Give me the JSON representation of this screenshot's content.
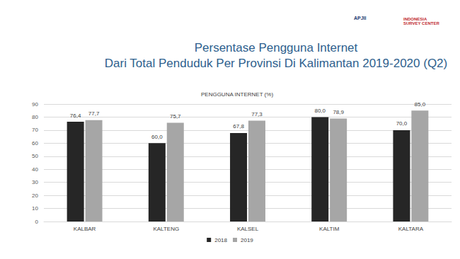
{
  "chart_data": {
    "type": "bar",
    "title": "Persentase Pengguna Internet",
    "subtitle": "Dari Total Penduduk Per Provinsi Di Kalimantan 2019-2020 (Q2)",
    "ylabel": "PENGGUNA INTERNET (%)",
    "annotations": [
      "APJII",
      "INDONESIA SURVEY CENTER"
    ],
    "categories": [
      "KALBAR",
      "KALTENG",
      "KALSEL",
      "KALTIM",
      "KALTARA"
    ],
    "series": [
      {
        "name": "2018",
        "color": "#262626",
        "values": [
          76.4,
          60.0,
          67.8,
          80.0,
          70.0
        ],
        "value_labels": [
          "76,4",
          "60,0",
          "67,8",
          "80,0",
          "70,0"
        ]
      },
      {
        "name": "2019",
        "color": "#a6a6a6",
        "values": [
          77.7,
          75.7,
          77.3,
          78.9,
          85.0
        ],
        "value_labels": [
          "77,7",
          "75,7",
          "77,3",
          "78,9",
          "85,0"
        ]
      }
    ],
    "ylim": [
      0,
      90
    ],
    "yticks": [
      0,
      10,
      20,
      30,
      40,
      50,
      60,
      70,
      80,
      90
    ],
    "grid": true,
    "legend": "bottom",
    "data_labels": true
  }
}
